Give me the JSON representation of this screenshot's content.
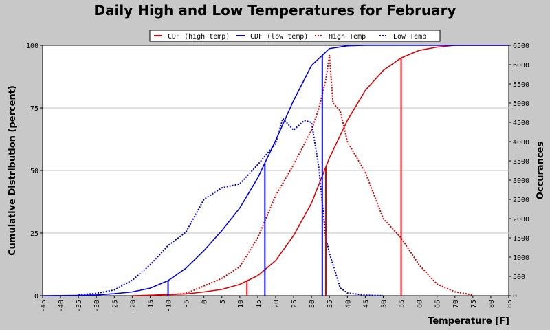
{
  "colors": {
    "background": "#c8c8c8",
    "plot": "#ffffff",
    "high": "#e00000",
    "low": "#0000e0",
    "grid": "#c0c0c0"
  },
  "chart_data": {
    "type": "line",
    "title": "Daily High and Low Temperatures for February",
    "xlabel": "Temperature [F]",
    "ylabel": "Cumulative Distribution (percent)",
    "y2label": "Occurances",
    "xlim": [
      -45,
      85
    ],
    "ylim": [
      0,
      100
    ],
    "y2lim": [
      0,
      6500
    ],
    "xticks": [
      -45,
      -40,
      -35,
      -30,
      -25,
      -20,
      -15,
      -10,
      -5,
      0,
      5,
      10,
      15,
      20,
      25,
      30,
      35,
      40,
      45,
      50,
      55,
      60,
      65,
      70,
      75,
      80,
      85
    ],
    "yticks": [
      0,
      25,
      50,
      75,
      100
    ],
    "y2ticks": [
      0,
      500,
      1000,
      1500,
      2000,
      2500,
      3000,
      3500,
      4000,
      4500,
      5000,
      5500,
      6000,
      6500
    ],
    "grid": true,
    "legend_position": "top-center",
    "legend": [
      {
        "label": "CDF (high temp)",
        "color": "#e00000",
        "style": "solid"
      },
      {
        "label": "CDF (low temp)",
        "color": "#0000e0",
        "style": "solid"
      },
      {
        "label": "High Temp",
        "color": "#e00000",
        "style": "dotted"
      },
      {
        "label": "Low Temp",
        "color": "#0000e0",
        "style": "dotted"
      }
    ],
    "series": [
      {
        "name": "CDF (high temp)",
        "axis": "left",
        "style": "solid",
        "color": "#e00000",
        "x": [
          -20,
          -15,
          -10,
          -5,
          0,
          5,
          10,
          15,
          20,
          25,
          30,
          35,
          40,
          45,
          50,
          55,
          60,
          65,
          70,
          85
        ],
        "y": [
          0,
          0.2,
          0.5,
          0.7,
          1.5,
          2.5,
          4.5,
          8,
          14,
          24,
          37,
          55,
          70,
          82,
          90,
          95,
          98,
          99.3,
          100,
          100
        ]
      },
      {
        "name": "CDF (low temp)",
        "axis": "left",
        "style": "solid",
        "color": "#0000e0",
        "x": [
          -45,
          -35,
          -30,
          -25,
          -20,
          -15,
          -10,
          -5,
          0,
          5,
          10,
          15,
          20,
          25,
          30,
          35,
          40,
          45,
          50,
          85
        ],
        "y": [
          0,
          0.1,
          0.3,
          0.8,
          1.5,
          3,
          6,
          11,
          18,
          26,
          35,
          47,
          62,
          78,
          92,
          98.7,
          99.8,
          100,
          100,
          100
        ]
      },
      {
        "name": "High Temp",
        "axis": "right",
        "style": "dotted",
        "color": "#e00000",
        "x": [
          -15,
          -10,
          -5,
          0,
          5,
          10,
          15,
          20,
          25,
          30,
          32,
          34,
          35,
          36,
          38,
          40,
          45,
          50,
          55,
          60,
          65,
          70,
          75
        ],
        "y": [
          5,
          20,
          60,
          250,
          450,
          750,
          1500,
          2600,
          3400,
          4300,
          4850,
          5600,
          6250,
          5000,
          4800,
          4000,
          3200,
          2000,
          1500,
          800,
          300,
          100,
          20
        ]
      },
      {
        "name": "Low Temp",
        "axis": "right",
        "style": "dotted",
        "color": "#0000e0",
        "x": [
          -35,
          -30,
          -25,
          -20,
          -15,
          -10,
          -5,
          0,
          5,
          10,
          15,
          20,
          22,
          25,
          28,
          30,
          32,
          34,
          35,
          38,
          40,
          45,
          50
        ],
        "y": [
          20,
          60,
          150,
          400,
          800,
          1300,
          1650,
          2500,
          2800,
          2900,
          3400,
          3950,
          4600,
          4300,
          4550,
          4500,
          3350,
          1500,
          1100,
          200,
          70,
          15,
          0
        ]
      }
    ],
    "markers": [
      {
        "series": "CDF (high temp)",
        "x": 12
      },
      {
        "series": "CDF (high temp)",
        "x": 34
      },
      {
        "series": "CDF (high temp)",
        "x": 55
      },
      {
        "series": "CDF (low temp)",
        "x": -10
      },
      {
        "series": "CDF (low temp)",
        "x": 17
      },
      {
        "series": "CDF (low temp)",
        "x": 33
      }
    ]
  }
}
